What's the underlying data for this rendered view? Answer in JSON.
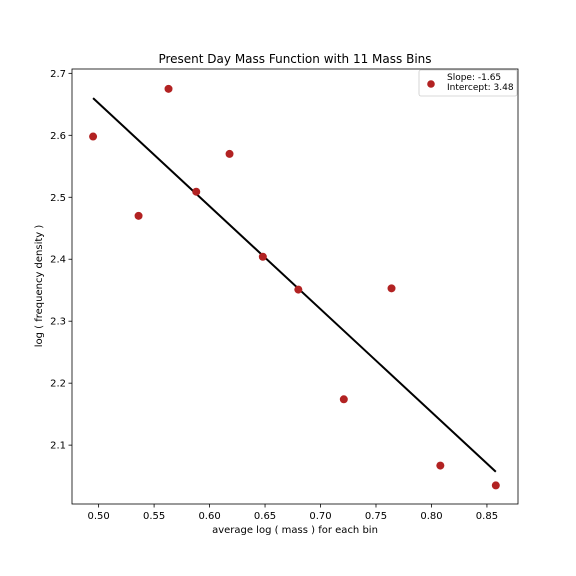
{
  "chart_data": {
    "type": "scatter",
    "title": "Present Day Mass Function with 11 Mass Bins",
    "xlabel": "average log ( mass ) for each bin",
    "ylabel": "log ( frequency density )",
    "xlim": [
      0.476,
      0.878
    ],
    "ylim": [
      2.005,
      2.707
    ],
    "xticks": [
      "0.50",
      "0.55",
      "0.60",
      "0.65",
      "0.70",
      "0.75",
      "0.80",
      "0.85"
    ],
    "yticks": [
      "2.1",
      "2.2",
      "2.3",
      "2.4",
      "2.5",
      "2.6",
      "2.7"
    ],
    "grid": false,
    "legend_position": "top-right",
    "points": {
      "x": [
        0.495,
        0.536,
        0.563,
        0.588,
        0.618,
        0.648,
        0.68,
        0.721,
        0.764,
        0.808,
        0.858
      ],
      "y": [
        2.598,
        2.47,
        2.675,
        2.509,
        2.57,
        2.404,
        2.351,
        2.174,
        2.353,
        2.067,
        2.035
      ],
      "color": "#b22222"
    },
    "fit_line": {
      "x": [
        0.495,
        0.858
      ],
      "y": [
        2.66,
        2.057
      ],
      "color": "#000000"
    },
    "legend": {
      "entries": [
        "Slope: -1.65",
        "Intercept: 3.48"
      ]
    }
  }
}
